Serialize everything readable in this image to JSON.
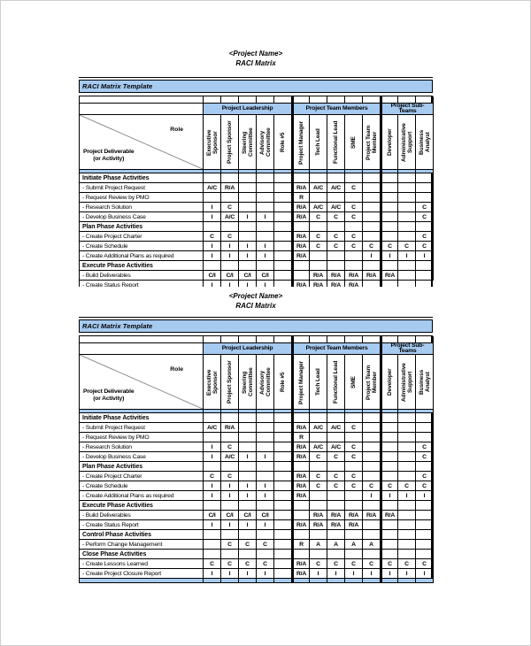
{
  "document": {
    "page_title_line1": "<Project Name>",
    "page_title_line2": "RACI Matrix"
  },
  "banner_label": "RACI Matrix Template",
  "corner": {
    "role_label": "Role",
    "deliverable_line1": "Project Deliverable",
    "deliverable_line2": "(or Activity)"
  },
  "column_groups": [
    {
      "label": "Project Leadership",
      "span": 5
    },
    {
      "label": "Project Team Members",
      "span": 5
    },
    {
      "label": "Project Sub-Teams",
      "span": 3
    }
  ],
  "role_columns": [
    "Executive Sponsor",
    "Project Sponsor",
    "Steering Committee",
    "Advisory Committee",
    "Role #5",
    "Project Manager",
    "Tech Lead",
    "Functional Lead",
    "SME",
    "Project Team Member",
    "Developer",
    "Administrative Support",
    "Business Analyst"
  ],
  "colors": {
    "header_blue": "#A6CAF0",
    "border_black": "#000000",
    "diagonal_gray": "#8a8a8a"
  },
  "tables": [
    {
      "name": "raci-table-page-1",
      "rows": [
        {
          "type": "section",
          "label": "Initiate Phase Activities"
        },
        {
          "type": "activity",
          "label": "- Submit Project Request",
          "cells": [
            "A/C",
            "R/A",
            "",
            "",
            "",
            "R/A",
            "A/C",
            "A/C",
            "C",
            "",
            "",
            "",
            ""
          ]
        },
        {
          "type": "activity",
          "label": "- Request Review by PMO",
          "cells": [
            "",
            "",
            "",
            "",
            "",
            "R",
            "",
            "",
            "",
            "",
            "",
            "",
            ""
          ]
        },
        {
          "type": "activity",
          "label": "- Research Solution",
          "cells": [
            "I",
            "C",
            "",
            "",
            "",
            "R/A",
            "A/C",
            "A/C",
            "C",
            "",
            "",
            "",
            "C"
          ]
        },
        {
          "type": "activity",
          "label": "- Develop Business Case",
          "cells": [
            "I",
            "A/C",
            "I",
            "I",
            "",
            "R/A",
            "C",
            "C",
            "C",
            "",
            "",
            "",
            "C"
          ]
        },
        {
          "type": "section",
          "label": "Plan Phase Activities"
        },
        {
          "type": "activity",
          "label": "- Create Project Charter",
          "cells": [
            "C",
            "C",
            "",
            "",
            "",
            "R/A",
            "C",
            "C",
            "C",
            "",
            "",
            "",
            "C"
          ]
        },
        {
          "type": "activity",
          "label": "- Create Schedule",
          "cells": [
            "I",
            "I",
            "I",
            "I",
            "",
            "R/A",
            "C",
            "C",
            "C",
            "C",
            "C",
            "C",
            "C"
          ]
        },
        {
          "type": "activity",
          "label": "- Create Additional Plans as required",
          "cells": [
            "I",
            "I",
            "I",
            "I",
            "",
            "R/A",
            "",
            "",
            "",
            "I",
            "I",
            "I",
            "I"
          ]
        },
        {
          "type": "section",
          "label": "Execute Phase Activities"
        },
        {
          "type": "activity",
          "label": "- Build Deliverables",
          "cells": [
            "C/I",
            "C/I",
            "C/I",
            "C/I",
            "",
            "",
            "R/A",
            "R/A",
            "R/A",
            "R/A",
            "R/A",
            "",
            ""
          ]
        }
      ],
      "clipped_row": {
        "type": "activity",
        "label": "- Create Status Report",
        "cells": [
          "I",
          "I",
          "I",
          "I",
          "",
          "R/A",
          "R/A",
          "R/A",
          "R/A",
          "",
          "",
          "",
          ""
        ]
      },
      "has_footer_strip": false
    },
    {
      "name": "raci-table-page-2",
      "rows": [
        {
          "type": "section",
          "label": "Initiate Phase Activities"
        },
        {
          "type": "activity",
          "label": "- Submit Project Request",
          "cells": [
            "A/C",
            "R/A",
            "",
            "",
            "",
            "R/A",
            "A/C",
            "A/C",
            "C",
            "",
            "",
            "",
            ""
          ]
        },
        {
          "type": "activity",
          "label": "- Request Review by PMO",
          "cells": [
            "",
            "",
            "",
            "",
            "",
            "R",
            "",
            "",
            "",
            "",
            "",
            "",
            ""
          ]
        },
        {
          "type": "activity",
          "label": "- Research Solution",
          "cells": [
            "I",
            "C",
            "",
            "",
            "",
            "R/A",
            "A/C",
            "A/C",
            "C",
            "",
            "",
            "",
            "C"
          ]
        },
        {
          "type": "activity",
          "label": "- Develop Business Case",
          "cells": [
            "I",
            "A/C",
            "I",
            "I",
            "",
            "R/A",
            "C",
            "C",
            "C",
            "",
            "",
            "",
            "C"
          ]
        },
        {
          "type": "section",
          "label": "Plan Phase Activities"
        },
        {
          "type": "activity",
          "label": "- Create Project Charter",
          "cells": [
            "C",
            "C",
            "",
            "",
            "",
            "R/A",
            "C",
            "C",
            "C",
            "",
            "",
            "",
            "C"
          ]
        },
        {
          "type": "activity",
          "label": "- Create Schedule",
          "cells": [
            "I",
            "I",
            "I",
            "I",
            "",
            "R/A",
            "C",
            "C",
            "C",
            "C",
            "C",
            "C",
            "C"
          ]
        },
        {
          "type": "activity",
          "label": "- Create Additional Plans as required",
          "cells": [
            "I",
            "I",
            "I",
            "I",
            "",
            "R/A",
            "",
            "",
            "",
            "I",
            "I",
            "I",
            "I"
          ]
        },
        {
          "type": "section",
          "label": "Execute Phase Activities"
        },
        {
          "type": "activity",
          "label": "- Build Deliverables",
          "cells": [
            "C/I",
            "C/I",
            "C/I",
            "C/I",
            "",
            "",
            "R/A",
            "R/A",
            "R/A",
            "R/A",
            "R/A",
            "",
            ""
          ]
        },
        {
          "type": "activity",
          "label": "- Create Status Report",
          "cells": [
            "I",
            "I",
            "I",
            "I",
            "",
            "R/A",
            "R/A",
            "R/A",
            "R/A",
            "",
            "",
            "",
            ""
          ]
        },
        {
          "type": "section",
          "label": "Control Phase Activities"
        },
        {
          "type": "activity",
          "label": "- Perform Change Management",
          "cells": [
            "",
            "C",
            "C",
            "C",
            "",
            "R",
            "A",
            "A",
            "A",
            "A",
            "",
            "",
            ""
          ]
        },
        {
          "type": "section",
          "label": "Close Phase Activities"
        },
        {
          "type": "activity",
          "label": "- Create Lessons Learned",
          "cells": [
            "C",
            "C",
            "C",
            "C",
            "",
            "R/A",
            "C",
            "C",
            "C",
            "C",
            "C",
            "C",
            "C"
          ]
        },
        {
          "type": "activity",
          "label": "- Create Project Closure Report",
          "cells": [
            "I",
            "I",
            "I",
            "I",
            "",
            "R/A",
            "I",
            "I",
            "I",
            "I",
            "I",
            "I",
            "I"
          ]
        }
      ],
      "clipped_row": null,
      "has_footer_strip": true
    }
  ]
}
